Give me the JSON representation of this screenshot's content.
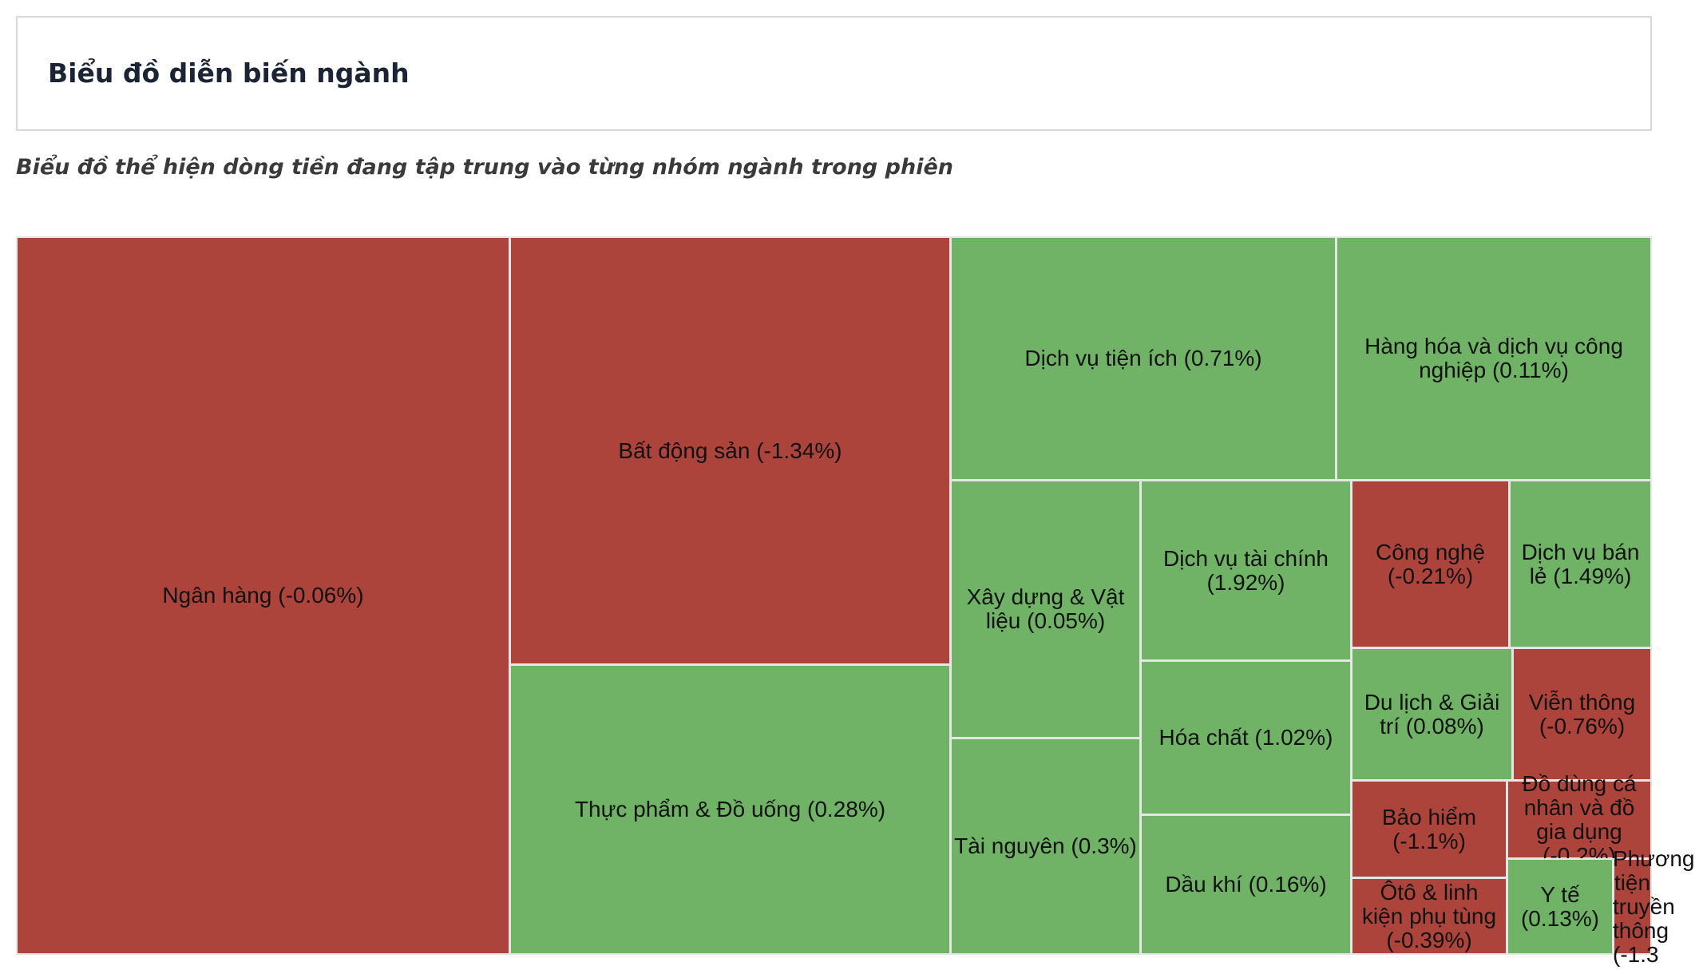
{
  "header": {
    "title": "Biểu đồ diễn biến ngành"
  },
  "subtitle": "Biểu đồ thể hiện dòng tiền đang tập trung vào từng nhóm ngành trong phiên",
  "colors": {
    "up": "#70b366",
    "down": "#ac443c",
    "tile_border": "#e6e6e6"
  },
  "chart_data": {
    "type": "treemap",
    "items": [
      {
        "name": "Ngân hàng",
        "change": -0.06,
        "label": "Ngân hàng (-0.06%)"
      },
      {
        "name": "Bất động sản",
        "change": -1.34,
        "label": "Bất động sản (-1.34%)"
      },
      {
        "name": "Thực phẩm & Đồ uống",
        "change": 0.28,
        "label": "Thực phẩm & Đồ uống (0.28%)"
      },
      {
        "name": "Dịch vụ tiện ích",
        "change": 0.71,
        "label": "Dịch vụ tiện ích (0.71%)"
      },
      {
        "name": "Hàng hóa và dịch vụ công nghiệp",
        "change": 0.11,
        "label": "Hàng hóa và dịch vụ công nghiệp (0.11%)"
      },
      {
        "name": "Xây dựng & Vật liệu",
        "change": 0.05,
        "label": "Xây dựng & Vật liệu (0.05%)"
      },
      {
        "name": "Tài nguyên",
        "change": 0.3,
        "label": "Tài nguyên (0.3%)"
      },
      {
        "name": "Dịch vụ tài chính",
        "change": 1.92,
        "label": "Dịch vụ tài chính (1.92%)"
      },
      {
        "name": "Hóa chất",
        "change": 1.02,
        "label": "Hóa chất (1.02%)"
      },
      {
        "name": "Dầu khí",
        "change": 0.16,
        "label": "Dầu khí (0.16%)"
      },
      {
        "name": "Công nghệ",
        "change": -0.21,
        "label": "Công nghệ (-0.21%)"
      },
      {
        "name": "Dịch vụ bán lẻ",
        "change": 1.49,
        "label": "Dịch vụ bán lẻ (1.49%)"
      },
      {
        "name": "Du lịch & Giải trí",
        "change": 0.08,
        "label": "Du lịch & Giải trí (0.08%)"
      },
      {
        "name": "Viễn thông",
        "change": -0.76,
        "label": "Viễn thông (-0.76%)"
      },
      {
        "name": "Bảo hiểm",
        "change": -1.1,
        "label": "Bảo hiểm (-1.1%)"
      },
      {
        "name": "Đồ dùng cá nhân và đồ gia dụng",
        "change": -0.2,
        "label": "Đồ dùng cá nhân và đồ gia dụng (-0.2%)"
      },
      {
        "name": "Ôtô & linh kiện phụ tùng",
        "change": -0.39,
        "label": "Ôtô & linh kiện phụ tùng (-0.39%)"
      },
      {
        "name": "Y tế",
        "change": 0.13,
        "label": "Y tế (0.13%)"
      },
      {
        "name": "Phương tiện truyền thông",
        "change": -1.3,
        "label": "Phương tiện truyền thông (-1.3"
      }
    ]
  }
}
